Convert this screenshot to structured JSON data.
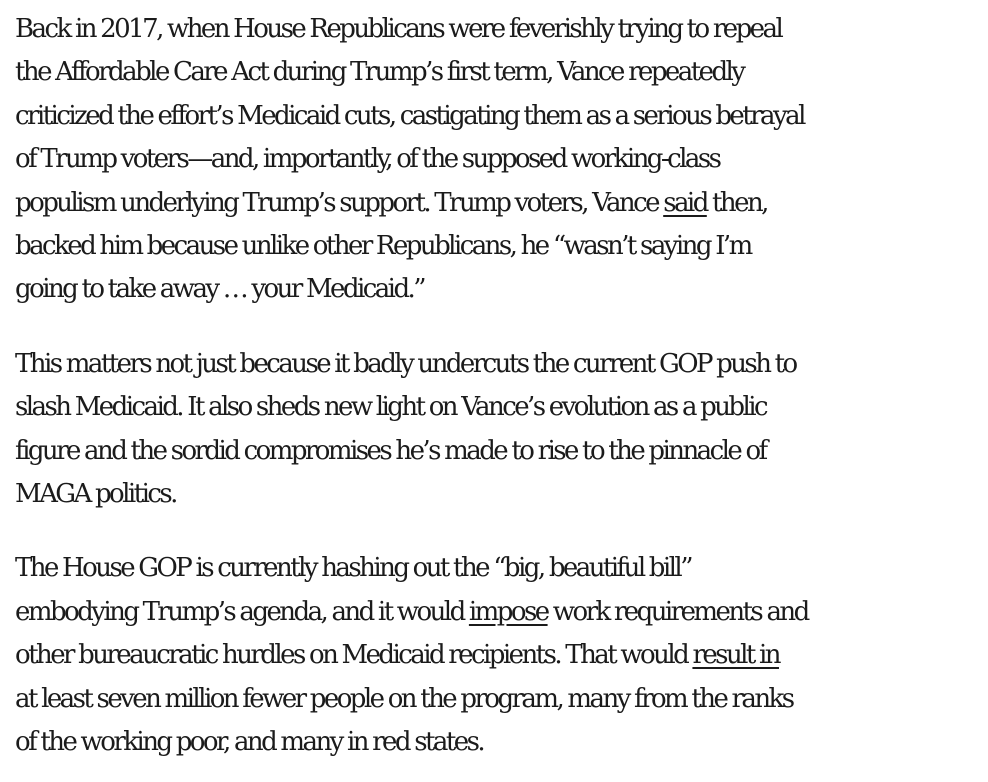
{
  "article": {
    "paragraphs": [
      {
        "lines": [
          [
            "Back in 2017, when House Republicans were feverishly trying to repeal"
          ],
          [
            "the Affordable Care Act during Trump’s first term, Vance repeatedly"
          ],
          [
            "criticized the effort’s Medicaid cuts, castigating them as a serious betrayal"
          ],
          [
            "of Trump voters—and, importantly, of the supposed working-class"
          ],
          [
            "populism underlying Trump’s support. Trump voters, Vance ",
            "said",
            " then,"
          ],
          [
            "backed him because unlike other Republicans, he “wasn’t saying I’m"
          ],
          [
            "going to take away … your Medicaid.”"
          ]
        ]
      },
      {
        "lines": [
          [
            "This matters not just because it badly undercuts the current GOP push to"
          ],
          [
            "slash Medicaid. It also sheds new light on Vance’s evolution as a public"
          ],
          [
            "figure and the sordid compromises he’s made to rise to the pinnacle of"
          ],
          [
            "MAGA politics."
          ]
        ]
      },
      {
        "lines": [
          [
            "The House GOP is currently hashing out the “big, beautiful bill”"
          ],
          [
            "embodying Trump’s agenda, and it would ",
            "impose",
            " work requirements and"
          ],
          [
            "other bureaucratic hurdles on Medicaid recipients. That would ",
            "result in"
          ],
          [
            "at least seven million fewer people on the program, many from the ranks"
          ],
          [
            "of the working poor, and many in red states."
          ]
        ]
      }
    ]
  }
}
